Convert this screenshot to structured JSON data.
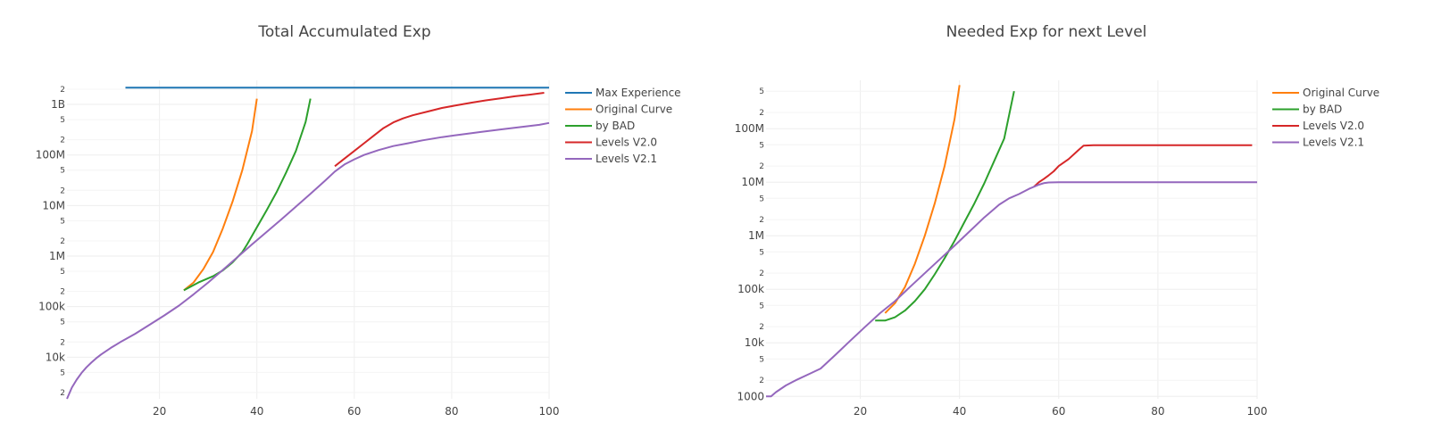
{
  "colors": {
    "max_experience": "#1f77b4",
    "original_curve": "#ff7f0e",
    "by_bad": "#2ca02c",
    "levels_v20": "#d62728",
    "levels_v21": "#9467bd",
    "grid": "#eeeeee",
    "text": "#444444"
  },
  "chart_data": [
    {
      "type": "line",
      "title": "Total Accumulated Exp",
      "xlabel": "",
      "ylabel": "",
      "xlim": [
        1,
        100
      ],
      "ylim": [
        1500,
        3000000000
      ],
      "yscale": "log",
      "grid": true,
      "legend_position": "top-right",
      "x_ticks": [
        "20",
        "40",
        "60",
        "80",
        "100"
      ],
      "y_ticks": [
        "10k",
        "100k",
        "1M",
        "10M",
        "100M",
        "1B"
      ],
      "series": [
        {
          "name": "Max Experience",
          "color": "#1f77b4",
          "x": [
            13,
            100
          ],
          "y": [
            2147483647,
            2147483647
          ]
        },
        {
          "name": "Original Curve",
          "color": "#ff7f0e",
          "x": [
            25,
            27,
            29,
            31,
            33,
            35,
            37,
            39,
            40
          ],
          "y": [
            210000,
            300000,
            550000,
            1200000,
            3500000,
            12000000,
            50000000,
            300000000,
            1300000000
          ]
        },
        {
          "name": "by BAD",
          "color": "#2ca02c",
          "x": [
            25,
            28,
            31,
            33,
            35,
            37,
            38,
            40,
            42,
            44,
            46,
            48,
            50,
            51
          ],
          "y": [
            210000,
            300000,
            400000,
            520000,
            750000,
            1200000,
            1700000,
            3700000,
            8000000,
            18000000,
            45000000,
            120000000,
            450000000,
            1300000000
          ]
        },
        {
          "name": "Levels V2.0",
          "color": "#d62728",
          "x": [
            56,
            58,
            60,
            62,
            64,
            66,
            68,
            70,
            72,
            75,
            78,
            81,
            84,
            87,
            90,
            93,
            96,
            99
          ],
          "y": [
            60000000,
            85000000,
            120000000,
            170000000,
            240000000,
            340000000,
            440000000,
            530000000,
            610000000,
            720000000,
            850000000,
            960000000,
            1080000000,
            1200000000,
            1320000000,
            1450000000,
            1560000000,
            1700000000
          ]
        },
        {
          "name": "Levels V2.1",
          "color": "#9467bd",
          "x": [
            1,
            2,
            3,
            4,
            5,
            6,
            7,
            8,
            10,
            12,
            15,
            18,
            21,
            24,
            27,
            30,
            33,
            36,
            39,
            42,
            45,
            48,
            51,
            54,
            56,
            58,
            60,
            62,
            65,
            68,
            71,
            74,
            78,
            82,
            86,
            90,
            94,
            98,
            100
          ],
          "y": [
            1500,
            2500,
            3600,
            4900,
            6300,
            7800,
            9500,
            11300,
            15300,
            20000,
            29000,
            44000,
            67000,
            105000,
            175000,
            300000,
            530000,
            950000,
            1700000,
            3000000,
            5300000,
            9500000,
            17000000,
            31000000,
            47000000,
            65000000,
            82000000,
            100000000,
            125000000,
            150000000,
            170000000,
            195000000,
            225000000,
            255000000,
            285000000,
            320000000,
            355000000,
            395000000,
            430000000
          ]
        }
      ]
    },
    {
      "type": "line",
      "title": "Needed Exp for next Level",
      "xlabel": "",
      "ylabel": "",
      "xlim": [
        1,
        100
      ],
      "ylim": [
        900,
        800000000
      ],
      "yscale": "log",
      "grid": true,
      "legend_position": "top-right",
      "x_ticks": [
        "20",
        "40",
        "60",
        "80",
        "100"
      ],
      "y_ticks": [
        "1000",
        "10k",
        "100k",
        "1M",
        "10M",
        "100M"
      ],
      "series": [
        {
          "name": "Original Curve",
          "color": "#ff7f0e",
          "x": [
            25,
            27,
            29,
            31,
            33,
            35,
            37,
            39,
            40
          ],
          "y": [
            36000,
            55000,
            110000,
            300000,
            1000000,
            4000000,
            20000000,
            150000000,
            650000000
          ]
        },
        {
          "name": "by BAD",
          "color": "#2ca02c",
          "x": [
            23,
            25,
            27,
            29,
            31,
            33,
            35,
            37,
            39,
            41,
            43,
            45,
            47,
            49,
            51
          ],
          "y": [
            26000,
            26000,
            30000,
            40000,
            60000,
            100000,
            190000,
            380000,
            800000,
            1800000,
            4000000,
            9500000,
            25000000,
            65000000,
            500000000
          ]
        },
        {
          "name": "Levels V2.0",
          "color": "#d62728",
          "x": [
            55,
            56,
            57,
            58,
            59,
            60,
            62,
            64,
            65,
            67,
            70,
            80,
            90,
            99
          ],
          "y": [
            8200000,
            10000000,
            11500000,
            13500000,
            16000000,
            20000000,
            27000000,
            40000000,
            48000000,
            49000000,
            49000000,
            49000000,
            49000000,
            49000000
          ]
        },
        {
          "name": "Levels V2.1",
          "color": "#9467bd",
          "x": [
            1,
            2,
            3,
            5,
            7,
            10,
            12,
            15,
            18,
            21,
            24,
            27,
            30,
            33,
            36,
            39,
            42,
            45,
            48,
            50,
            52,
            54,
            56,
            57,
            58,
            60,
            62,
            65,
            70,
            80,
            90,
            100
          ],
          "y": [
            1000,
            1000,
            1200,
            1600,
            2000,
            2700,
            3300,
            6000,
            11000,
            20000,
            36000,
            60000,
            110000,
            200000,
            360000,
            650000,
            1200000,
            2200000,
            3800000,
            5000000,
            6000000,
            7500000,
            9000000,
            9600000,
            9900000,
            10000000,
            10000000,
            10000000,
            10000000,
            10000000,
            10000000,
            10000000
          ]
        }
      ]
    }
  ]
}
